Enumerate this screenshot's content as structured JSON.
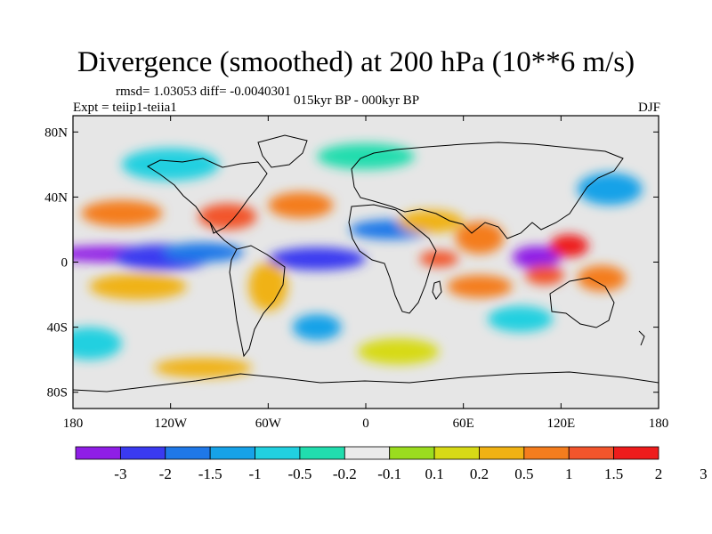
{
  "title": "Divergence (smoothed) at 200 hPa (10**6 m/s)",
  "stats_label": "rmsd= 1.03053  diff= -0.0040301",
  "experiment_label": "Expt = teiip1-teiia1",
  "period_label": "015kyr BP - 000kyr BP",
  "season_label": "DJF",
  "map": {
    "projection": "cylindrical equidistant",
    "lon_range": [
      -180,
      180
    ],
    "lat_range": [
      -90,
      90
    ],
    "background_color": "#e6e6e6",
    "lat_tick_labels": [
      "80N",
      "40N",
      "0",
      "40S",
      "80S"
    ],
    "lat_tick_values": [
      80,
      40,
      0,
      -40,
      -80
    ],
    "lon_tick_labels": [
      "180",
      "120W",
      "60W",
      "0",
      "60E",
      "120E",
      "180"
    ],
    "lon_tick_values": [
      -180,
      -120,
      -60,
      0,
      60,
      120,
      180
    ]
  },
  "colorbar": {
    "colors": [
      "#8f1ee6",
      "#3a3af0",
      "#1f78e8",
      "#16a2e8",
      "#21d0e0",
      "#21ddae",
      "#ebebeb",
      "#9bdc1f",
      "#d7da16",
      "#f0b214",
      "#f47d1e",
      "#f2552c",
      "#ee1c1c"
    ],
    "labels": [
      "-3",
      "-2",
      "-1.5",
      "-1",
      "-0.5",
      "-0.2",
      "-0.1",
      "0.1",
      "0.2",
      "0.5",
      "1",
      "1.5",
      "2",
      "3"
    ]
  },
  "field_blobs": [
    {
      "lon": -155,
      "lat": 5,
      "rlon": 42,
      "rlat": 5,
      "level": 0
    },
    {
      "lon": -125,
      "lat": 3,
      "rlon": 30,
      "rlat": 8,
      "level": 1
    },
    {
      "lon": -100,
      "lat": 6,
      "rlon": 25,
      "rlat": 6,
      "level": 2
    },
    {
      "lon": -30,
      "lat": 2,
      "rlon": 30,
      "rlat": 7,
      "level": 1
    },
    {
      "lon": 15,
      "lat": 20,
      "rlon": 25,
      "rlat": 6,
      "level": 2
    },
    {
      "lon": 105,
      "lat": 3,
      "rlon": 15,
      "rlat": 7,
      "level": 0
    },
    {
      "lon": -150,
      "lat": 30,
      "rlon": 25,
      "rlat": 8,
      "level": 10
    },
    {
      "lon": -85,
      "lat": 28,
      "rlon": 18,
      "rlat": 8,
      "level": 11
    },
    {
      "lon": -40,
      "lat": 35,
      "rlon": 20,
      "rlat": 8,
      "level": 10
    },
    {
      "lon": 40,
      "lat": 25,
      "rlon": 20,
      "rlat": 7,
      "level": 9
    },
    {
      "lon": 70,
      "lat": 15,
      "rlon": 15,
      "rlat": 10,
      "level": 10
    },
    {
      "lon": 125,
      "lat": 10,
      "rlon": 12,
      "rlat": 7,
      "level": 12
    },
    {
      "lon": 45,
      "lat": 2,
      "rlon": 12,
      "rlat": 5,
      "level": 11
    },
    {
      "lon": 110,
      "lat": -8,
      "rlon": 12,
      "rlat": 6,
      "level": 11
    },
    {
      "lon": 70,
      "lat": -15,
      "rlon": 20,
      "rlat": 7,
      "level": 10
    },
    {
      "lon": 145,
      "lat": -10,
      "rlon": 15,
      "rlat": 8,
      "level": 10
    },
    {
      "lon": -60,
      "lat": -15,
      "rlon": 12,
      "rlat": 15,
      "level": 9
    },
    {
      "lon": -140,
      "lat": -15,
      "rlon": 30,
      "rlat": 8,
      "level": 9
    },
    {
      "lon": -30,
      "lat": -40,
      "rlon": 15,
      "rlat": 8,
      "level": 3
    },
    {
      "lon": 95,
      "lat": -35,
      "rlon": 20,
      "rlat": 8,
      "level": 4
    },
    {
      "lon": -120,
      "lat": 60,
      "rlon": 30,
      "rlat": 10,
      "level": 4
    },
    {
      "lon": 0,
      "lat": 65,
      "rlon": 30,
      "rlat": 8,
      "level": 5
    },
    {
      "lon": 150,
      "lat": 45,
      "rlon": 20,
      "rlat": 10,
      "level": 3
    },
    {
      "lon": -170,
      "lat": -50,
      "rlon": 20,
      "rlat": 10,
      "level": 4
    },
    {
      "lon": 20,
      "lat": -55,
      "rlon": 25,
      "rlat": 8,
      "level": 8
    },
    {
      "lon": -100,
      "lat": -65,
      "rlon": 30,
      "rlat": 6,
      "level": 9
    }
  ]
}
